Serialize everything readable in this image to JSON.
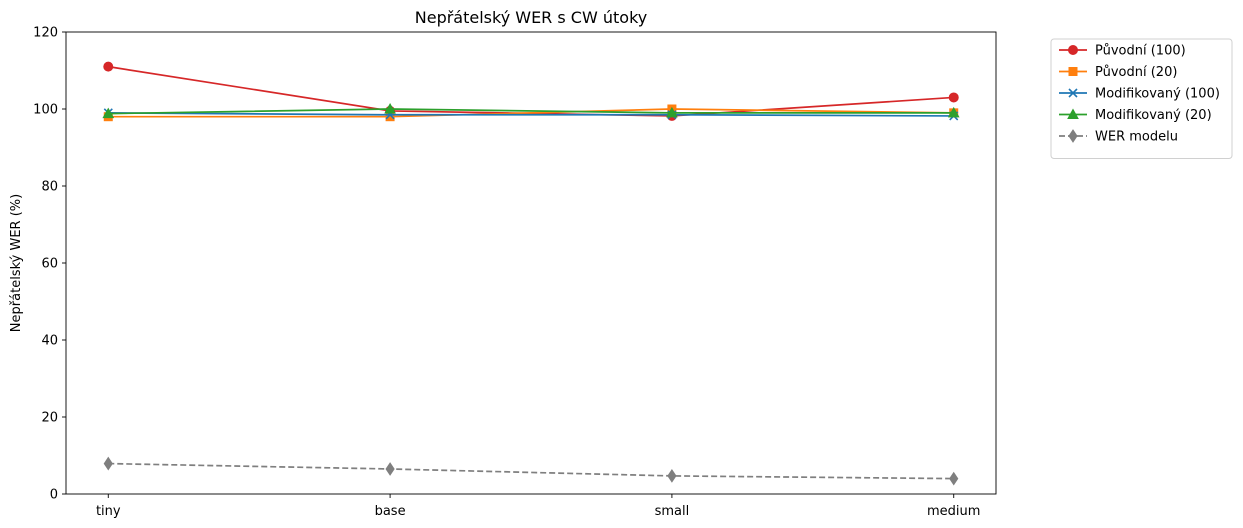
{
  "chart_data": {
    "type": "line",
    "title": "Nepřátelský WER s CW útoky",
    "xlabel": "",
    "ylabel": "Nepřátelský WER (%)",
    "categories": [
      "tiny",
      "base",
      "small",
      "medium"
    ],
    "ylim": [
      0,
      120
    ],
    "yticks": [
      0,
      20,
      40,
      60,
      80,
      100,
      120
    ],
    "grid": false,
    "legend_position": "outside-top-right",
    "series": [
      {
        "name": "Původní (100)",
        "values": [
          111,
          99.5,
          98.2,
          103
        ],
        "color": "#d62728",
        "marker": "circle",
        "dash": "solid"
      },
      {
        "name": "Původní (20)",
        "values": [
          98,
          98,
          100,
          99
        ],
        "color": "#ff7f0e",
        "marker": "square",
        "dash": "solid"
      },
      {
        "name": "Modifikovaný (100)",
        "values": [
          99,
          98.5,
          98.5,
          98.2
        ],
        "color": "#1f77b4",
        "marker": "x",
        "dash": "solid"
      },
      {
        "name": "Modifikovaný (20)",
        "values": [
          98.8,
          100,
          99,
          99
        ],
        "color": "#2ca02c",
        "marker": "triangle",
        "dash": "solid"
      },
      {
        "name": "WER modelu",
        "values": [
          7.9,
          6.5,
          4.7,
          4
        ],
        "color": "#7f7f7f",
        "marker": "diamond",
        "dash": "dashed"
      }
    ]
  }
}
